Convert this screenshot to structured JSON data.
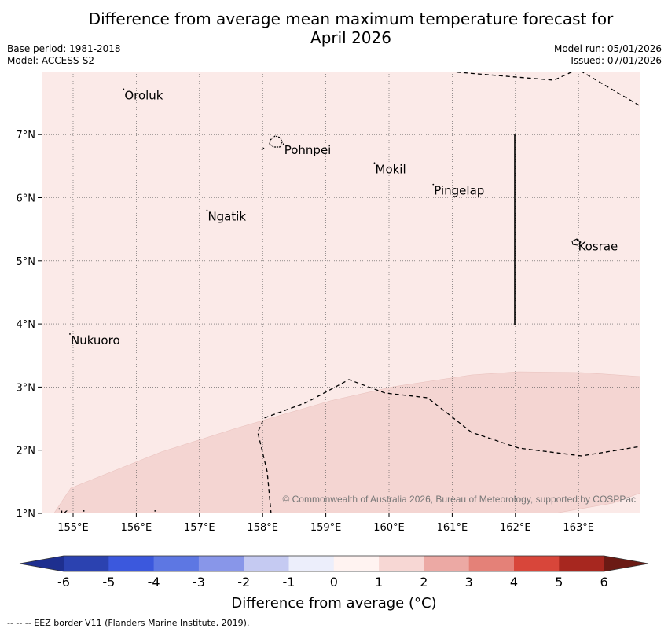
{
  "title": {
    "line1": "Difference from average mean maximum temperature forecast for",
    "line2": "April 2026"
  },
  "meta": {
    "base_period": "Base period: 1981-2018",
    "model": "Model: ACCESS-S2",
    "model_run": "Model run: 05/01/2026",
    "issued": "Issued: 07/01/2026"
  },
  "map": {
    "lon_ticks": [
      "155°E",
      "156°E",
      "157°E",
      "158°E",
      "159°E",
      "160°E",
      "161°E",
      "162°E",
      "163°E"
    ],
    "lat_ticks": [
      "7°N",
      "6°N",
      "5°N",
      "4°N",
      "3°N",
      "2°N",
      "1°N"
    ],
    "places": [
      {
        "name": "Oroluk",
        "lon": 155.8,
        "lat": 7.72
      },
      {
        "name": "Pohnpei",
        "lon": 158.33,
        "lat": 6.85
      },
      {
        "name": "Mokil",
        "lon": 159.77,
        "lat": 6.55
      },
      {
        "name": "Pingelap",
        "lon": 160.7,
        "lat": 6.21
      },
      {
        "name": "Ngatik",
        "lon": 157.12,
        "lat": 5.8
      },
      {
        "name": "Kosrae",
        "lon": 162.98,
        "lat": 5.33
      },
      {
        "name": "Nukuoro",
        "lon": 154.95,
        "lat": 3.84
      },
      {
        "name": "Kapingamarangi",
        "lon": 154.78,
        "lat": 1.07
      }
    ],
    "copyright": "© Commonwealth of Australia 2026, Bureau of Meteorology, supported by COSPPac",
    "colors": {
      "background_anomaly": "#fbeae8",
      "band_anomaly": "#f4d5d2"
    }
  },
  "colorbar": {
    "ticks": [
      "-6",
      "-5",
      "-4",
      "-3",
      "-2",
      "-1",
      "0",
      "1",
      "2",
      "3",
      "4",
      "5",
      "6"
    ],
    "colors": [
      "#1e2f8f",
      "#2b42b0",
      "#3b58dd",
      "#5d77e3",
      "#8896e9",
      "#c5caf2",
      "#eceefb",
      "#fff3f1",
      "#f7d7d4",
      "#eca9a4",
      "#e48178",
      "#d8463a",
      "#a7271f",
      "#6b1a14"
    ],
    "label": "Difference from average (°C)"
  },
  "footnote": "--  --  -- EEZ border V11 (Flanders Marine Institute, 2019)."
}
